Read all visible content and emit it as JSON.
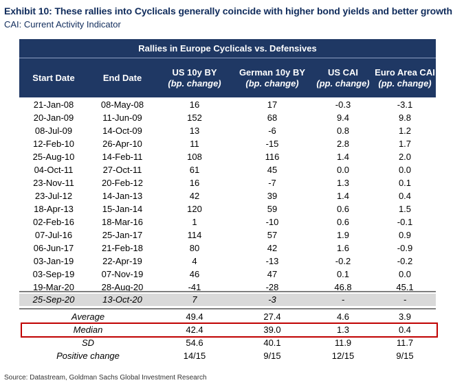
{
  "title": "Exhibit 10: These rallies into Cyclicals generally coincide with higher bond yields and better growth",
  "subtitle": "CAI: Current Activity Indicator",
  "table": {
    "caption": "Rallies in Europe Cyclicals vs. Defensives",
    "headers": [
      {
        "main": "Start Date",
        "sub": ""
      },
      {
        "main": "End Date",
        "sub": ""
      },
      {
        "main": "US 10y BY",
        "sub": "(bp. change)"
      },
      {
        "main": "German 10y BY",
        "sub": "(bp. change)"
      },
      {
        "main": "US CAI",
        "sub": "(pp. change)"
      },
      {
        "main": "Euro Area CAI",
        "sub": "(pp. change)"
      }
    ],
    "rows": [
      [
        "21-Jan-08",
        "08-May-08",
        "16",
        "17",
        "-0.3",
        "-3.1"
      ],
      [
        "20-Jan-09",
        "11-Jun-09",
        "152",
        "68",
        "9.4",
        "9.8"
      ],
      [
        "08-Jul-09",
        "14-Oct-09",
        "13",
        "-6",
        "0.8",
        "1.2"
      ],
      [
        "12-Feb-10",
        "26-Apr-10",
        "11",
        "-15",
        "2.8",
        "1.7"
      ],
      [
        "25-Aug-10",
        "14-Feb-11",
        "108",
        "116",
        "1.4",
        "2.0"
      ],
      [
        "04-Oct-11",
        "27-Oct-11",
        "61",
        "45",
        "0.0",
        "0.0"
      ],
      [
        "23-Nov-11",
        "20-Feb-12",
        "16",
        "-7",
        "1.3",
        "0.1"
      ],
      [
        "23-Jul-12",
        "14-Jan-13",
        "42",
        "39",
        "1.4",
        "0.4"
      ],
      [
        "18-Apr-13",
        "15-Jan-14",
        "120",
        "59",
        "0.6",
        "1.5"
      ],
      [
        "02-Feb-16",
        "18-Mar-16",
        "1",
        "-10",
        "0.6",
        "-0.1"
      ],
      [
        "07-Jul-16",
        "25-Jan-17",
        "114",
        "57",
        "1.9",
        "0.9"
      ],
      [
        "06-Jun-17",
        "21-Feb-18",
        "80",
        "42",
        "1.6",
        "-0.9"
      ],
      [
        "03-Jan-19",
        "22-Apr-19",
        "4",
        "-13",
        "-0.2",
        "-0.2"
      ],
      [
        "03-Sep-19",
        "07-Nov-19",
        "46",
        "47",
        "0.1",
        "0.0"
      ],
      [
        "19-Mar-20",
        "28-Aug-20",
        "-41",
        "-28",
        "46.8",
        "45.1"
      ]
    ],
    "recent": [
      "25-Sep-20",
      "13-Oct-20",
      "7",
      "-3",
      "-",
      "-"
    ],
    "stats": [
      {
        "label": "Average",
        "values": [
          "49.4",
          "27.4",
          "4.6",
          "3.9"
        ]
      },
      {
        "label": "Median",
        "values": [
          "42.4",
          "39.0",
          "1.3",
          "0.4"
        ]
      },
      {
        "label": "SD",
        "values": [
          "54.6",
          "40.1",
          "11.9",
          "11.7"
        ]
      },
      {
        "label": "Positive change",
        "values": [
          "14/15",
          "9/15",
          "12/15",
          "9/15"
        ]
      }
    ]
  },
  "source": "Source: Datastream, Goldman Sachs Global Investment Research",
  "colors": {
    "header_bg": "#1f3864",
    "title": "#0f2b5b",
    "highlight": "#c00000",
    "recent_bg": "#d9d9d9"
  }
}
